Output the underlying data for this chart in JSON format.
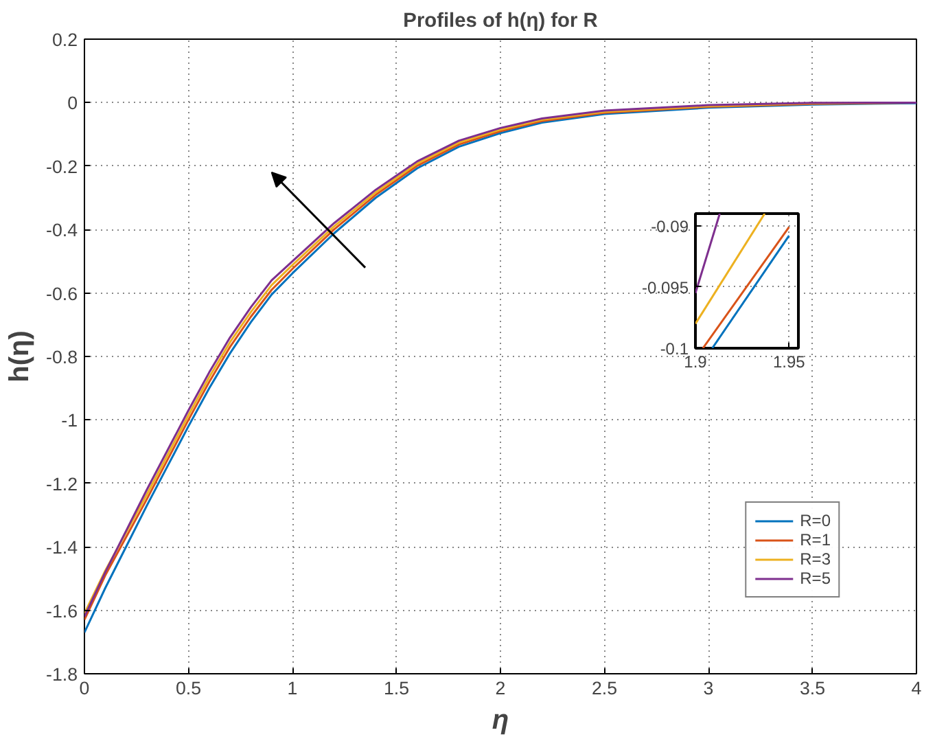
{
  "chart_data": [
    {
      "type": "line",
      "title": "Profiles of h(η) for R",
      "xlabel": "η",
      "ylabel": "h(η)",
      "x": [
        0,
        0.1,
        0.2,
        0.3,
        0.4,
        0.5,
        0.6,
        0.7,
        0.8,
        0.9,
        1.0,
        1.2,
        1.4,
        1.6,
        1.8,
        2.0,
        2.2,
        2.5,
        3.0,
        3.5,
        4.0
      ],
      "series": [
        {
          "name": "R=0",
          "color": "#0072bd",
          "values": [
            -1.67,
            -1.53,
            -1.4,
            -1.27,
            -1.145,
            -1.02,
            -0.9,
            -0.79,
            -0.692,
            -0.605,
            -0.538,
            -0.412,
            -0.3,
            -0.207,
            -0.139,
            -0.096,
            -0.063,
            -0.036,
            -0.016,
            -0.006,
            -0.002
          ]
        },
        {
          "name": "R=1",
          "color": "#d95319",
          "values": [
            -1.63,
            -1.49,
            -1.37,
            -1.25,
            -1.125,
            -1.0,
            -0.88,
            -0.77,
            -0.675,
            -0.59,
            -0.524,
            -0.4,
            -0.291,
            -0.199,
            -0.132,
            -0.09,
            -0.058,
            -0.032,
            -0.013,
            -0.004,
            0
          ]
        },
        {
          "name": "R=3",
          "color": "#edb120",
          "values": [
            -1.61,
            -1.475,
            -1.355,
            -1.235,
            -1.11,
            -0.985,
            -0.865,
            -0.755,
            -0.66,
            -0.575,
            -0.512,
            -0.39,
            -0.283,
            -0.192,
            -0.126,
            -0.085,
            -0.054,
            -0.029,
            -0.011,
            -0.002,
            0
          ]
        },
        {
          "name": "R=5",
          "color": "#7e2f8e",
          "values": [
            -1.62,
            -1.48,
            -1.35,
            -1.22,
            -1.095,
            -0.97,
            -0.85,
            -0.74,
            -0.645,
            -0.56,
            -0.5,
            -0.38,
            -0.275,
            -0.185,
            -0.12,
            -0.08,
            -0.05,
            -0.025,
            -0.008,
            -0.001,
            0
          ]
        }
      ],
      "xlim": [
        0,
        4
      ],
      "xticks": [
        0,
        0.5,
        1,
        1.5,
        2,
        2.5,
        3,
        3.5,
        4
      ],
      "ylim": [
        -1.8,
        0.2
      ],
      "yticks": [
        -1.8,
        -1.6,
        -1.4,
        -1.2,
        -1,
        -0.8,
        -0.6,
        -0.4,
        -0.2,
        0,
        0.2
      ],
      "grid": true,
      "legend": "bottom right"
    },
    {
      "type": "line",
      "series": [
        {
          "color": "#0072bd",
          "x": [
            1.909,
            1.95
          ],
          "values": [
            -0.1,
            -0.0908
          ]
        },
        {
          "color": "#d95319",
          "x": [
            1.904,
            1.95
          ],
          "values": [
            -0.1,
            -0.0901
          ]
        },
        {
          "color": "#edb120",
          "x": [
            1.9,
            1.937
          ],
          "values": [
            -0.098,
            -0.089
          ]
        },
        {
          "color": "#7e2f8e",
          "x": [
            1.9,
            1.913
          ],
          "values": [
            -0.0955,
            -0.089
          ]
        }
      ],
      "xlim": [
        1.9,
        1.955
      ],
      "xticks": [
        1.9,
        1.95
      ],
      "ylim": [
        -0.1,
        -0.089
      ],
      "yticks": [
        -0.1,
        -0.095,
        -0.09
      ],
      "grid": true
    }
  ]
}
